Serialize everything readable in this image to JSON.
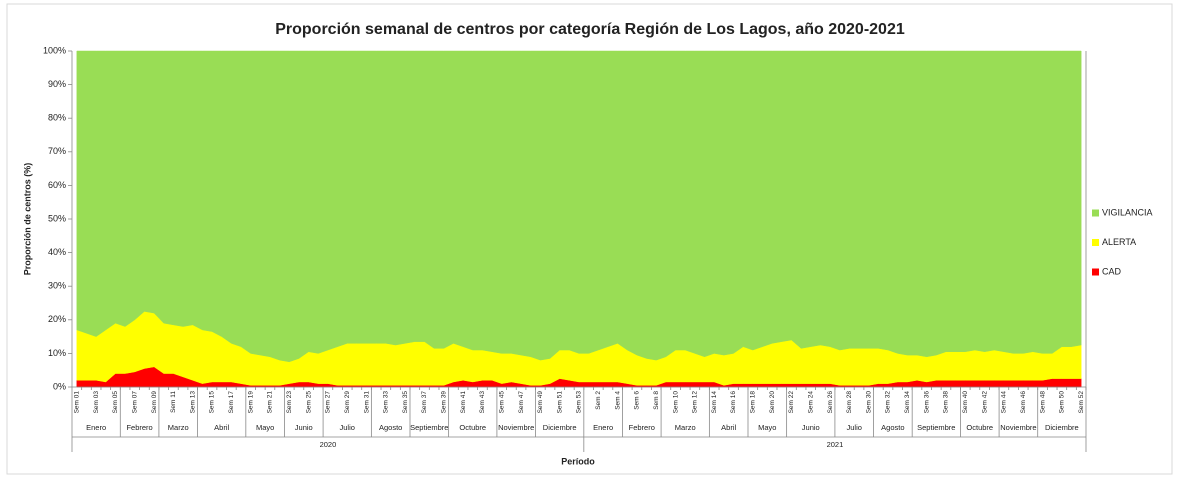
{
  "chart_data": {
    "type": "stacked_area",
    "title": "Proporción semanal de centros por categoría Región de Los Lagos, año 2020-2021",
    "x_label": "Período",
    "y_label": "Proporción de centros (%)",
    "categories": [
      "Sem 01",
      null,
      "Sem 03",
      null,
      "Sem 05",
      null,
      "Sem 07",
      null,
      "Sem 09",
      null,
      "Sem 11",
      null,
      "Sem 13",
      null,
      "Sem 15",
      null,
      "Sem 17",
      null,
      "Sem 19",
      null,
      "Sem 21",
      null,
      "Sem 23",
      null,
      "Sem 25",
      null,
      "Sem 27",
      null,
      "Sem 29",
      null,
      "Sem 31",
      null,
      "Sem 33",
      null,
      "Sem 35",
      null,
      "Sem 37",
      null,
      "Sem 39",
      null,
      "Sem 41",
      null,
      "Sem 43",
      null,
      "Sem 45",
      null,
      "Sem 47",
      null,
      "Sem 49",
      null,
      "Sem 51",
      null,
      "Sem 53",
      null,
      "Sem 2",
      null,
      "Sem 4",
      null,
      "Sem 6",
      null,
      "Sem 8",
      null,
      "Sem 10",
      null,
      "Sem 12",
      null,
      "Sem 14",
      null,
      "Sem 16",
      null,
      "Sem 18",
      null,
      "Sem 20",
      null,
      "Sem 22",
      null,
      "Sem 24",
      null,
      "Sem 26",
      null,
      "Sem 28",
      null,
      "Sem 30",
      null,
      "Sem 32",
      null,
      "Sem 34",
      null,
      "Sem 36",
      null,
      "Sem 38",
      null,
      "Sem 40",
      null,
      "Sem 42",
      null,
      "Sem 44",
      null,
      "Sem 46",
      null,
      "Sem 48",
      null,
      "Sem 50",
      null,
      "Sem 52"
    ],
    "month_groups": [
      {
        "label": "Enero",
        "span": 5
      },
      {
        "label": "Febrero",
        "span": 4
      },
      {
        "label": "Marzo",
        "span": 4
      },
      {
        "label": "Abril",
        "span": 5
      },
      {
        "label": "Mayo",
        "span": 4
      },
      {
        "label": "Junio",
        "span": 4
      },
      {
        "label": "Julio",
        "span": 5
      },
      {
        "label": "Agosto",
        "span": 4
      },
      {
        "label": "Septiembre",
        "span": 4
      },
      {
        "label": "Octubre",
        "span": 5
      },
      {
        "label": "Noviembre",
        "span": 4
      },
      {
        "label": "Diciembre",
        "span": 5
      },
      {
        "label": "Enero",
        "span": 4
      },
      {
        "label": "Febrero",
        "span": 4
      },
      {
        "label": "Marzo",
        "span": 5
      },
      {
        "label": "Abril",
        "span": 4
      },
      {
        "label": "Mayo",
        "span": 4
      },
      {
        "label": "Junio",
        "span": 5
      },
      {
        "label": "Julio",
        "span": 4
      },
      {
        "label": "Agosto",
        "span": 4
      },
      {
        "label": "Septiembre",
        "span": 5
      },
      {
        "label": "Octubre",
        "span": 4
      },
      {
        "label": "Noviembre",
        "span": 4
      },
      {
        "label": "Diciembre",
        "span": 5
      }
    ],
    "year_groups": [
      {
        "label": "2020",
        "span": 53
      },
      {
        "label": "2021",
        "span": 52
      }
    ],
    "series": [
      {
        "name": "CAD",
        "color": "#ff0000",
        "values": [
          2,
          2,
          2,
          1.5,
          4,
          4,
          4.5,
          5.5,
          6,
          4,
          4,
          3,
          2,
          1,
          1.5,
          1.5,
          1.5,
          1,
          0.5,
          0.5,
          0.5,
          0.5,
          1,
          1.5,
          1.5,
          1,
          1,
          0.5,
          0.5,
          0.5,
          0.5,
          0.5,
          0.5,
          0.5,
          0.5,
          0.5,
          0.5,
          0.5,
          0.5,
          1.5,
          2,
          1.5,
          2,
          2,
          1,
          1.5,
          1,
          0.5,
          0.5,
          1,
          2.5,
          2,
          1.5,
          1.5,
          1.5,
          1.5,
          1.5,
          1,
          0.5,
          0.5,
          0.5,
          1.5,
          1.5,
          1.5,
          1.5,
          1.5,
          1.5,
          0.5,
          1,
          1,
          1,
          1,
          1,
          1,
          1,
          1,
          1,
          1,
          1,
          0.5,
          0.5,
          0.5,
          0.5,
          1,
          1,
          1.5,
          1.5,
          2,
          1.5,
          2,
          2,
          2,
          2,
          2,
          2,
          2,
          2,
          2,
          2,
          2,
          2,
          2.5,
          2.5,
          2.5,
          2.5
        ]
      },
      {
        "name": "ALERTA",
        "color": "#ffff00",
        "values": [
          15,
          14,
          13,
          15.5,
          15,
          14,
          15.5,
          17,
          16,
          15,
          14.5,
          15,
          16.5,
          16,
          15,
          13.5,
          11.5,
          11,
          9.5,
          9,
          8.5,
          7.5,
          6.5,
          7,
          9,
          9,
          10,
          11.5,
          12.5,
          12.5,
          12.5,
          12.5,
          12.5,
          12,
          12.5,
          13,
          13,
          11,
          11,
          11.5,
          10,
          9.5,
          9,
          8.5,
          9,
          8.5,
          8.5,
          8.5,
          7.5,
          7.5,
          8.5,
          9,
          8.5,
          8.5,
          9.5,
          10.5,
          11.5,
          10,
          9,
          8,
          7.5,
          7.5,
          9.5,
          9.5,
          8.5,
          7.5,
          8.5,
          9,
          9,
          11,
          10,
          11,
          12,
          12.5,
          13,
          10.5,
          11,
          11.5,
          11,
          10.5,
          11,
          11,
          11,
          10.5,
          10,
          8.5,
          8,
          7.5,
          7.5,
          7.5,
          8.5,
          8.5,
          8.5,
          9,
          8.5,
          9,
          8.5,
          8,
          8,
          8.5,
          8,
          7.5,
          9.5,
          9.5,
          10
        ]
      },
      {
        "name": "VIGILANCIA",
        "color": "#99dd55",
        "values": [
          83,
          84,
          85,
          83,
          81,
          82,
          80,
          77.5,
          78,
          81,
          81.5,
          82,
          81.5,
          83,
          83.5,
          85,
          87,
          88,
          90,
          90.5,
          91,
          92,
          92.5,
          91.5,
          89.5,
          90,
          89,
          88,
          87,
          87,
          87,
          87,
          87,
          87.5,
          87,
          86.5,
          86.5,
          88.5,
          88.5,
          87,
          88,
          89,
          89,
          89.5,
          90,
          90,
          90.5,
          91,
          92,
          91.5,
          89,
          89,
          90,
          90,
          89,
          88,
          87,
          89,
          90.5,
          91.5,
          92,
          91,
          89,
          89,
          90,
          91,
          90,
          90.5,
          90,
          88,
          89,
          88,
          87,
          86.5,
          86,
          88.5,
          88,
          87.5,
          88,
          89,
          88.5,
          88.5,
          88.5,
          88.5,
          89,
          90,
          90.5,
          90.5,
          91,
          90.5,
          89.5,
          89.5,
          89.5,
          89,
          89.5,
          89,
          89.5,
          90,
          90,
          89.5,
          90,
          90,
          88,
          88,
          87.5
        ]
      }
    ],
    "ylim": [
      0,
      100
    ],
    "yticks": [
      {
        "value": 0,
        "label": "0%"
      },
      {
        "value": 10,
        "label": "10%"
      },
      {
        "value": 20,
        "label": "20%"
      },
      {
        "value": 30,
        "label": "30%"
      },
      {
        "value": 40,
        "label": "40%"
      },
      {
        "value": 50,
        "label": "50%"
      },
      {
        "value": 60,
        "label": "60%"
      },
      {
        "value": 70,
        "label": "70%"
      },
      {
        "value": 80,
        "label": "80%"
      },
      {
        "value": 90,
        "label": "90%"
      },
      {
        "value": 100,
        "label": "100%"
      }
    ],
    "legend": "right"
  }
}
